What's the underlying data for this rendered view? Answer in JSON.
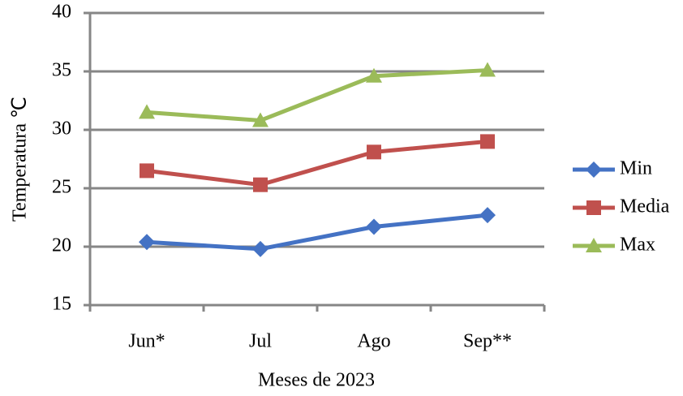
{
  "chart_data": {
    "type": "line",
    "x_label": "Meses de 2023",
    "y_label": "Temperatura ℃",
    "categories": [
      "Jun*",
      "Jul",
      "Ago",
      "Sep**"
    ],
    "series": [
      {
        "name": "Min",
        "color": "#4472c4",
        "marker": "diamond",
        "values": [
          20.4,
          19.8,
          21.7,
          22.7
        ]
      },
      {
        "name": "Media",
        "color": "#c0504d",
        "marker": "square",
        "values": [
          26.5,
          25.3,
          28.1,
          29.0
        ]
      },
      {
        "name": "Max",
        "color": "#9bbb59",
        "marker": "triangle",
        "values": [
          31.5,
          30.8,
          34.6,
          35.1
        ]
      }
    ],
    "ylim": [
      15,
      40
    ],
    "yticks": [
      15,
      20,
      25,
      30,
      35,
      40
    ],
    "grid": true,
    "legend": "right"
  }
}
